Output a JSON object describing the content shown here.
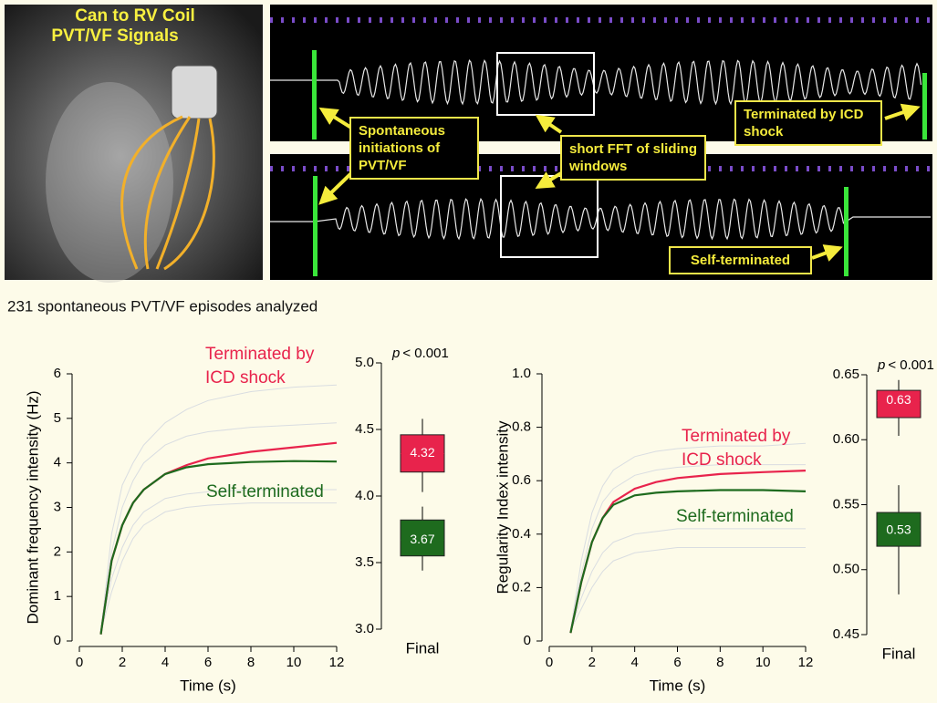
{
  "header": {
    "panel_label": [
      "Can to RV Coil",
      "PVT/VF Signals"
    ]
  },
  "annotations": {
    "initiation": "Spontaneous initiations of PVT/VF",
    "fft": "short FFT of sliding windows",
    "shock": "Terminated by ICD shock",
    "self": "Self-terminated"
  },
  "caption": "231 spontaneous PVT/VF episodes analyzed",
  "chart_data": [
    {
      "type": "line",
      "xlabel": "Time (s)",
      "ylabel": "Dominant frequency intensity (Hz)",
      "xlim": [
        0,
        12
      ],
      "ylim": [
        0,
        6
      ],
      "xticks": [
        0,
        2,
        4,
        6,
        8,
        10,
        12
      ],
      "yticks": [
        0,
        1,
        2,
        3,
        4,
        5,
        6
      ],
      "x": [
        1,
        1.5,
        2,
        2.5,
        3,
        4,
        5,
        6,
        8,
        10,
        12
      ],
      "series": [
        {
          "name": "Terminated by ICD shock",
          "color": "#e8234c",
          "values": [
            0.15,
            1.8,
            2.6,
            3.1,
            3.4,
            3.75,
            3.95,
            4.1,
            4.25,
            4.35,
            4.45
          ]
        },
        {
          "name": "Self-terminated",
          "color": "#1e6b1e",
          "values": [
            0.15,
            1.8,
            2.6,
            3.1,
            3.4,
            3.75,
            3.9,
            3.97,
            4.02,
            4.04,
            4.03
          ]
        }
      ],
      "background_series": [
        {
          "color": "#d9dde1",
          "values": [
            0.2,
            2.4,
            3.5,
            4.0,
            4.4,
            4.9,
            5.2,
            5.4,
            5.6,
            5.7,
            5.75
          ]
        },
        {
          "color": "#d9dde1",
          "values": [
            0.2,
            1.4,
            2.1,
            2.6,
            2.9,
            3.2,
            3.3,
            3.35,
            3.4,
            3.4,
            3.4
          ]
        },
        {
          "color": "#d9dde1",
          "values": [
            0.2,
            2.0,
            3.0,
            3.6,
            4.0,
            4.4,
            4.6,
            4.7,
            4.8,
            4.85,
            4.9
          ]
        },
        {
          "color": "#d9dde1",
          "values": [
            0.2,
            1.1,
            1.8,
            2.3,
            2.6,
            2.9,
            3.0,
            3.05,
            3.1,
            3.1,
            3.1
          ]
        }
      ]
    },
    {
      "type": "box",
      "annotation": {
        "italic": "p",
        "text": "< 0.001"
      },
      "categories": [
        "Final"
      ],
      "ylim": [
        3.0,
        5.0
      ],
      "yticks": [
        {
          "value": 3.0,
          "label": "3.0"
        },
        3.5,
        {
          "value": 4.0,
          "label": "4.0"
        },
        4.5,
        {
          "value": 5.0,
          "label": "5.0"
        }
      ],
      "series": [
        {
          "color": "#e8234c",
          "median": 4.32,
          "q1": 4.18,
          "q3": 4.46,
          "whisker_low": 4.03,
          "whisker_high": 4.58
        },
        {
          "color": "#1e6b1e",
          "median": 3.67,
          "q1": 3.55,
          "q3": 3.82,
          "whisker_low": 3.44,
          "whisker_high": 3.92
        }
      ]
    },
    {
      "type": "line",
      "xlabel": "Time (s)",
      "ylabel": "Regularity Index intensity",
      "xlim": [
        0,
        12
      ],
      "ylim": [
        0,
        1.0
      ],
      "xticks": [
        0,
        2,
        4,
        6,
        8,
        10,
        12
      ],
      "yticks": [
        0,
        0.2,
        0.4,
        0.6,
        0.8,
        {
          "value": 1.0,
          "label": "1.0"
        }
      ],
      "x": [
        1,
        1.5,
        2,
        2.5,
        3,
        4,
        5,
        6,
        8,
        10,
        12
      ],
      "series": [
        {
          "name": "Terminated by ICD shock",
          "color": "#e8234c",
          "values": [
            0.03,
            0.22,
            0.37,
            0.46,
            0.52,
            0.57,
            0.595,
            0.61,
            0.625,
            0.632,
            0.638
          ]
        },
        {
          "name": "Self-terminated",
          "color": "#1e6b1e",
          "values": [
            0.03,
            0.22,
            0.37,
            0.46,
            0.51,
            0.545,
            0.555,
            0.56,
            0.565,
            0.565,
            0.56
          ]
        }
      ],
      "background_series": [
        {
          "color": "#d9dde1",
          "values": [
            0.04,
            0.3,
            0.48,
            0.58,
            0.64,
            0.69,
            0.71,
            0.72,
            0.73,
            0.73,
            0.74
          ]
        },
        {
          "color": "#d9dde1",
          "values": [
            0.04,
            0.16,
            0.26,
            0.33,
            0.37,
            0.4,
            0.41,
            0.42,
            0.42,
            0.42,
            0.42
          ]
        },
        {
          "color": "#d9dde1",
          "values": [
            0.04,
            0.25,
            0.42,
            0.52,
            0.57,
            0.62,
            0.64,
            0.65,
            0.66,
            0.66,
            0.66
          ]
        },
        {
          "color": "#d9dde1",
          "values": [
            0.04,
            0.12,
            0.2,
            0.26,
            0.3,
            0.33,
            0.34,
            0.35,
            0.35,
            0.35,
            0.35
          ]
        }
      ]
    },
    {
      "type": "box",
      "annotation": {
        "italic": "p",
        "text": "< 0.001"
      },
      "categories": [
        "Final"
      ],
      "ylim": [
        0.45,
        0.65
      ],
      "yticks": [
        0.45,
        {
          "value": 0.5,
          "label": "0.50"
        },
        0.55,
        {
          "value": 0.6,
          "label": "0.60"
        },
        0.65
      ],
      "series": [
        {
          "color": "#e8234c",
          "median": 0.63,
          "q1": 0.617,
          "q3": 0.638,
          "whisker_low": 0.603,
          "whisker_high": 0.646
        },
        {
          "color": "#1e6b1e",
          "median": 0.53,
          "q1": 0.518,
          "q3": 0.544,
          "whisker_low": 0.481,
          "whisker_high": 0.565
        }
      ]
    }
  ]
}
